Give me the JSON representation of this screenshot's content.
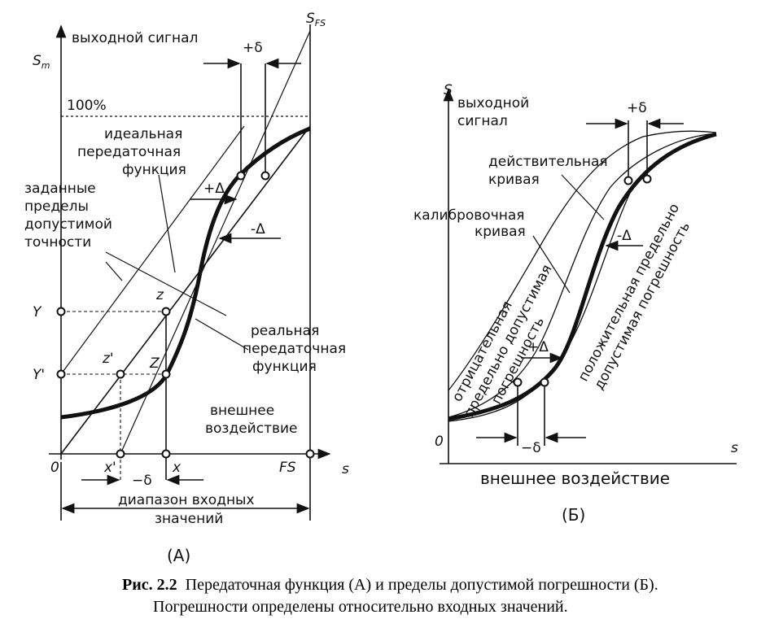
{
  "panel_a": {
    "y_axis_label": "выходной сигнал",
    "sm": "S",
    "sm_sub": "m",
    "sfs": "S",
    "sfs_sub": "FS",
    "plus_delta_top": "+δ",
    "hundred": "100%",
    "ideal": [
      "идеальная",
      "передаточная",
      "функция"
    ],
    "limits": [
      "заданные",
      "пределы",
      "допустимой",
      "точности"
    ],
    "plus_Delta": "+Δ",
    "minus_Delta": "-Δ",
    "real": [
      "реальная",
      "передаточная",
      "функция"
    ],
    "Y": "Y",
    "Y_prime": "Y'",
    "z": "z",
    "z_prime": "z'",
    "Z": "Z",
    "external": [
      "внешнее",
      "воздействие"
    ],
    "origin": "0",
    "x_prime": "x'",
    "x": "x",
    "FS": "FS",
    "s": "s",
    "minus_delta": "−δ",
    "range": [
      "диапазон входных",
      "значений"
    ],
    "panel_label": "(А)"
  },
  "panel_b": {
    "S": "S",
    "y_axis_label": [
      "выходной",
      "сигнал"
    ],
    "plus_delta": "+δ",
    "actual": [
      "действительная",
      "кривая"
    ],
    "calib": [
      "калибровочная",
      "кривая"
    ],
    "minus_Delta": "-Δ",
    "negative_err": [
      "отрицательная",
      "предельно допустимая",
      "погрешность"
    ],
    "positive_err": [
      "положительная предельно",
      "допустимая погрешность"
    ],
    "plus_Delta": "+Δ",
    "origin": "0",
    "minus_delta": "−δ",
    "s": "s",
    "x_axis_label": "внешнее воздействие",
    "panel_label": "(Б)"
  },
  "caption": {
    "label": "Рис. 2.2",
    "line1": "Передаточная функция (А) и пределы допустимой погрешности (Б).",
    "line2": "Погрешности определены относительно входных значений."
  }
}
